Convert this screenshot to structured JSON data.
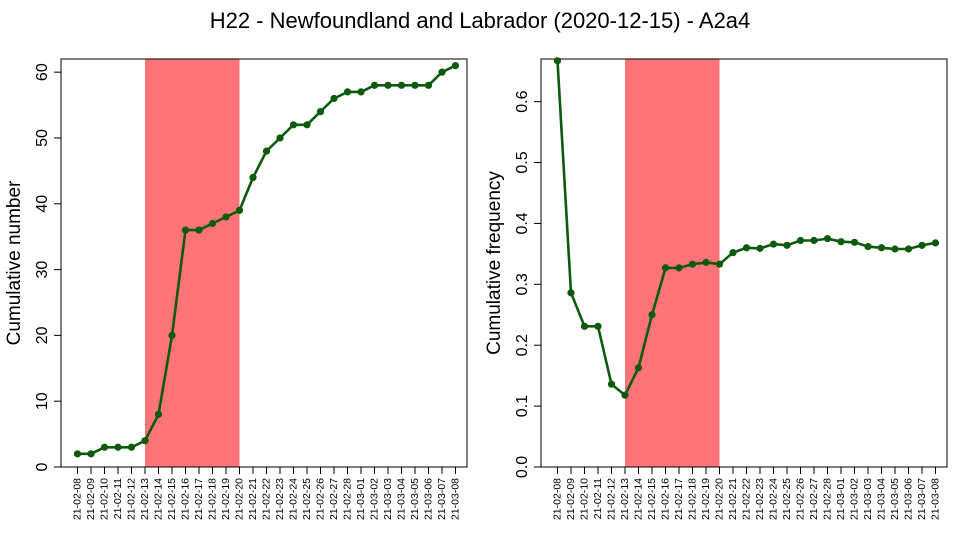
{
  "title": "H22 - Newfoundland and Labrador (2020-12-15) - A2a4",
  "colors": {
    "line": "#0d5a0d",
    "highlight": "#ff7478",
    "frame": "#000000"
  },
  "chart_data": [
    {
      "type": "line",
      "ylabel": "Cumulative number",
      "ylim": [
        0,
        62
      ],
      "yticks": [
        0,
        10,
        20,
        30,
        40,
        50,
        60
      ],
      "yticklabels": [
        "0",
        "10",
        "20",
        "30",
        "40",
        "50",
        "60"
      ],
      "highlight_range": [
        "21-02-13",
        "21-02-20"
      ],
      "x": [
        "21-02-08",
        "21-02-09",
        "21-02-10",
        "21-02-11",
        "21-02-12",
        "21-02-13",
        "21-02-14",
        "21-02-15",
        "21-02-16",
        "21-02-17",
        "21-02-18",
        "21-02-19",
        "21-02-20",
        "21-02-21",
        "21-02-22",
        "21-02-23",
        "21-02-24",
        "21-02-25",
        "21-02-26",
        "21-02-27",
        "21-02-28",
        "21-03-01",
        "21-03-02",
        "21-03-03",
        "21-03-04",
        "21-03-05",
        "21-03-06",
        "21-03-07",
        "21-03-08"
      ],
      "values": [
        2,
        2,
        3,
        3,
        3,
        4,
        8,
        20,
        36,
        36,
        37,
        38,
        39,
        44,
        48,
        50,
        52,
        52,
        54,
        56,
        57,
        57,
        58,
        58,
        58,
        58,
        58,
        60,
        61
      ]
    },
    {
      "type": "line",
      "ylabel": "Cumulative frequency",
      "ylim": [
        0,
        0.67
      ],
      "yticks": [
        0,
        0.1,
        0.2,
        0.3,
        0.4,
        0.5,
        0.6
      ],
      "yticklabels": [
        "0.0",
        "0.1",
        "0.2",
        "0.3",
        "0.4",
        "0.5",
        "0.6"
      ],
      "highlight_range": [
        "21-02-13",
        "21-02-20"
      ],
      "x": [
        "21-02-08",
        "21-02-09",
        "21-02-10",
        "21-02-11",
        "21-02-12",
        "21-02-13",
        "21-02-14",
        "21-02-15",
        "21-02-16",
        "21-02-17",
        "21-02-18",
        "21-02-19",
        "21-02-20",
        "21-02-21",
        "21-02-22",
        "21-02-23",
        "21-02-24",
        "21-02-25",
        "21-02-26",
        "21-02-27",
        "21-02-28",
        "21-03-01",
        "21-03-02",
        "21-03-03",
        "21-03-04",
        "21-03-05",
        "21-03-06",
        "21-03-07",
        "21-03-08"
      ],
      "values": [
        0.667,
        0.286,
        0.231,
        0.231,
        0.136,
        0.118,
        0.163,
        0.25,
        0.327,
        0.327,
        0.333,
        0.336,
        0.333,
        0.352,
        0.36,
        0.359,
        0.366,
        0.364,
        0.372,
        0.372,
        0.375,
        0.37,
        0.369,
        0.362,
        0.36,
        0.358,
        0.358,
        0.364,
        0.368
      ]
    }
  ]
}
